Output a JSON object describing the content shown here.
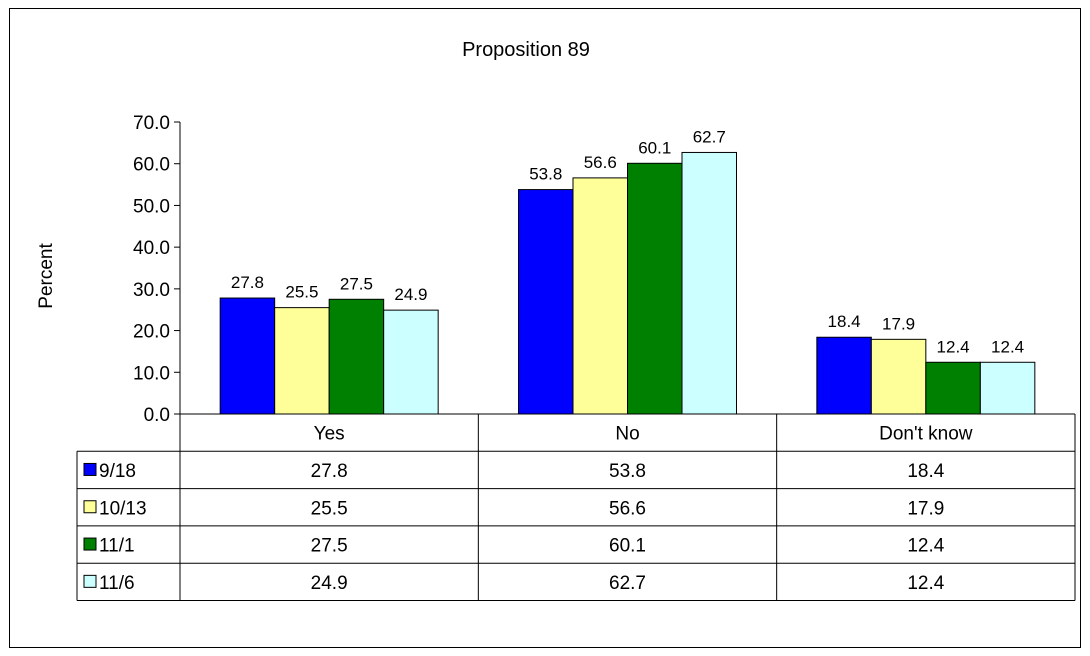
{
  "chart_data": {
    "type": "bar",
    "title": "Proposition 89",
    "ylabel": "Percent",
    "xlabel": "",
    "categories": [
      "Yes",
      "No",
      "Don't know"
    ],
    "ylim": [
      0,
      70
    ],
    "yticks": [
      "0.0",
      "10.0",
      "20.0",
      "30.0",
      "40.0",
      "50.0",
      "60.0",
      "70.0"
    ],
    "grid": false,
    "legend": "data-table",
    "series": [
      {
        "name": "9/18",
        "color": "#0000ff",
        "values": [
          27.8,
          53.8,
          18.4
        ],
        "labels": [
          "27.8",
          "53.8",
          "18.4"
        ]
      },
      {
        "name": "10/13",
        "color": "#ffff99",
        "values": [
          25.5,
          56.6,
          17.9
        ],
        "labels": [
          "25.5",
          "56.6",
          "17.9"
        ]
      },
      {
        "name": "11/1",
        "color": "#008000",
        "values": [
          27.5,
          60.1,
          12.4
        ],
        "labels": [
          "27.5",
          "60.1",
          "12.4"
        ]
      },
      {
        "name": "11/6",
        "color": "#ccffff",
        "values": [
          24.9,
          62.7,
          12.4
        ],
        "labels": [
          "24.9",
          "62.7",
          "12.4"
        ]
      }
    ]
  }
}
